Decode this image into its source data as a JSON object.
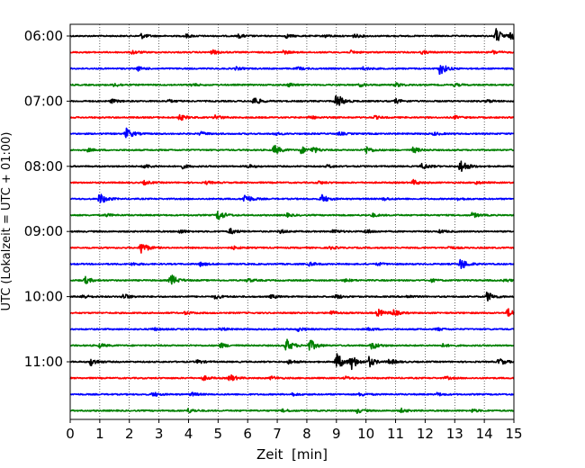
{
  "chart_data": {
    "type": "line",
    "title": "",
    "xlabel": "Zeit  [min]",
    "ylabel": "UTC (Lokalzeit = UTC + 01:00)",
    "xlim": [
      0,
      15
    ],
    "x_ticks": [
      "0",
      "1",
      "2",
      "3",
      "4",
      "5",
      "6",
      "7",
      "8",
      "9",
      "10",
      "11",
      "12",
      "13",
      "14",
      "15"
    ],
    "y_ticks": [
      "06:00",
      "07:00",
      "08:00",
      "09:00",
      "10:00",
      "11:00"
    ],
    "trace_interval_min": 15,
    "grid": "vertical dotted at each minute",
    "legend": "none",
    "colors": [
      "#000000",
      "#ff0000",
      "#0000ff",
      "#008000"
    ],
    "series": [
      {
        "start": "06:00",
        "color": "#000000",
        "events": [
          [
            2.4,
            0.35
          ],
          [
            3.9,
            0.25
          ],
          [
            5.7,
            0.25
          ],
          [
            7.3,
            0.25
          ],
          [
            8.6,
            0.2
          ],
          [
            9.6,
            0.25
          ],
          [
            14.4,
            1.0
          ],
          [
            14.9,
            0.4
          ]
        ]
      },
      {
        "start": "06:15",
        "color": "#ff0000",
        "events": [
          [
            2.1,
            0.25
          ],
          [
            4.8,
            0.3
          ],
          [
            7.2,
            0.25
          ],
          [
            9.5,
            0.2
          ],
          [
            11.9,
            0.2
          ],
          [
            14.3,
            0.25
          ]
        ]
      },
      {
        "start": "06:30",
        "color": "#0000ff",
        "events": [
          [
            2.3,
            0.25
          ],
          [
            5.6,
            0.2
          ],
          [
            7.7,
            0.2
          ],
          [
            9.9,
            0.2
          ],
          [
            12.5,
            0.9
          ]
        ]
      },
      {
        "start": "06:45",
        "color": "#008000",
        "events": [
          [
            1.5,
            0.25
          ],
          [
            4.1,
            0.2
          ],
          [
            7.4,
            0.25
          ],
          [
            9.8,
            0.2
          ],
          [
            11.0,
            0.3
          ],
          [
            13.0,
            0.2
          ]
        ]
      },
      {
        "start": "07:00",
        "color": "#000000",
        "events": [
          [
            1.4,
            0.25
          ],
          [
            3.3,
            0.2
          ],
          [
            6.2,
            0.6
          ],
          [
            9.0,
            1.1
          ],
          [
            11.0,
            0.3
          ],
          [
            14.1,
            0.2
          ]
        ]
      },
      {
        "start": "07:15",
        "color": "#ff0000",
        "events": [
          [
            3.7,
            0.4
          ],
          [
            4.9,
            0.35
          ],
          [
            8.1,
            0.25
          ],
          [
            10.3,
            0.2
          ],
          [
            13.0,
            0.2
          ]
        ]
      },
      {
        "start": "07:30",
        "color": "#0000ff",
        "events": [
          [
            1.9,
            0.8
          ],
          [
            4.4,
            0.25
          ],
          [
            6.9,
            0.2
          ],
          [
            9.1,
            0.2
          ],
          [
            12.3,
            0.2
          ]
        ]
      },
      {
        "start": "07:45",
        "color": "#008000",
        "events": [
          [
            0.6,
            0.2
          ],
          [
            6.9,
            0.7
          ],
          [
            7.8,
            0.5
          ],
          [
            8.2,
            0.4
          ],
          [
            10.0,
            0.5
          ],
          [
            11.6,
            0.4
          ]
        ]
      },
      {
        "start": "08:00",
        "color": "#000000",
        "events": [
          [
            2.5,
            0.3
          ],
          [
            3.8,
            0.25
          ],
          [
            6.0,
            0.25
          ],
          [
            8.7,
            0.2
          ],
          [
            11.9,
            0.45
          ],
          [
            13.2,
            1.0
          ]
        ]
      },
      {
        "start": "08:15",
        "color": "#ff0000",
        "events": [
          [
            2.5,
            0.25
          ],
          [
            4.6,
            0.2
          ],
          [
            8.4,
            0.2
          ],
          [
            11.6,
            0.35
          ],
          [
            13.7,
            0.2
          ]
        ]
      },
      {
        "start": "08:30",
        "color": "#0000ff",
        "events": [
          [
            1.0,
            0.8
          ],
          [
            5.9,
            0.7
          ],
          [
            8.5,
            0.6
          ],
          [
            10.6,
            0.2
          ],
          [
            13.1,
            0.2
          ]
        ]
      },
      {
        "start": "08:45",
        "color": "#008000",
        "events": [
          [
            1.2,
            0.2
          ],
          [
            5.0,
            0.75
          ],
          [
            7.3,
            0.25
          ],
          [
            10.2,
            0.25
          ],
          [
            13.6,
            0.35
          ]
        ]
      },
      {
        "start": "09:00",
        "color": "#000000",
        "events": [
          [
            3.7,
            0.25
          ],
          [
            5.4,
            0.4
          ],
          [
            7.1,
            0.25
          ],
          [
            8.9,
            0.25
          ],
          [
            10.0,
            0.3
          ],
          [
            12.5,
            0.2
          ]
        ]
      },
      {
        "start": "09:15",
        "color": "#ff0000",
        "events": [
          [
            2.4,
            0.85
          ],
          [
            5.5,
            0.2
          ],
          [
            8.8,
            0.2
          ],
          [
            12.8,
            0.2
          ]
        ]
      },
      {
        "start": "09:30",
        "color": "#0000ff",
        "events": [
          [
            2.1,
            0.2
          ],
          [
            4.4,
            0.25
          ],
          [
            8.1,
            0.25
          ],
          [
            10.4,
            0.2
          ],
          [
            13.2,
            0.85
          ]
        ]
      },
      {
        "start": "09:45",
        "color": "#008000",
        "events": [
          [
            0.5,
            0.5
          ],
          [
            3.4,
            0.85
          ],
          [
            6.0,
            0.25
          ],
          [
            9.3,
            0.2
          ],
          [
            12.2,
            0.2
          ],
          [
            14.7,
            0.2
          ]
        ]
      },
      {
        "start": "10:00",
        "color": "#000000",
        "events": [
          [
            0.4,
            0.3
          ],
          [
            1.8,
            0.4
          ],
          [
            4.9,
            0.3
          ],
          [
            6.8,
            0.25
          ],
          [
            9.0,
            0.3
          ],
          [
            11.4,
            0.2
          ],
          [
            14.1,
            0.7
          ]
        ]
      },
      {
        "start": "10:15",
        "color": "#ff0000",
        "events": [
          [
            3.9,
            0.2
          ],
          [
            8.8,
            0.3
          ],
          [
            10.4,
            0.55
          ],
          [
            10.9,
            0.45
          ],
          [
            14.8,
            0.6
          ]
        ]
      },
      {
        "start": "10:30",
        "color": "#0000ff",
        "events": [
          [
            2.8,
            0.2
          ],
          [
            5.1,
            0.2
          ],
          [
            7.7,
            0.25
          ],
          [
            10.1,
            0.2
          ],
          [
            12.4,
            0.2
          ]
        ]
      },
      {
        "start": "10:45",
        "color": "#008000",
        "events": [
          [
            1.0,
            0.25
          ],
          [
            5.1,
            0.3
          ],
          [
            7.3,
            0.95
          ],
          [
            8.1,
            0.85
          ],
          [
            10.2,
            0.55
          ],
          [
            12.6,
            0.2
          ]
        ]
      },
      {
        "start": "11:00",
        "color": "#000000",
        "events": [
          [
            0.7,
            0.55
          ],
          [
            4.3,
            0.25
          ],
          [
            7.4,
            0.3
          ],
          [
            9.0,
            1.3
          ],
          [
            9.5,
            1.0
          ],
          [
            10.1,
            0.7
          ],
          [
            10.8,
            0.4
          ],
          [
            14.5,
            0.5
          ]
        ]
      },
      {
        "start": "11:15",
        "color": "#ff0000",
        "events": [
          [
            4.5,
            0.3
          ],
          [
            5.4,
            0.5
          ],
          [
            6.8,
            0.25
          ],
          [
            9.3,
            0.2
          ],
          [
            12.7,
            0.2
          ]
        ]
      },
      {
        "start": "11:30",
        "color": "#0000ff",
        "events": [
          [
            2.8,
            0.3
          ],
          [
            4.1,
            0.25
          ],
          [
            7.5,
            0.2
          ],
          [
            9.8,
            0.25
          ],
          [
            12.4,
            0.2
          ]
        ]
      },
      {
        "start": "11:45",
        "color": "#008000",
        "events": [
          [
            4.0,
            0.3
          ],
          [
            7.2,
            0.2
          ],
          [
            9.7,
            0.3
          ],
          [
            11.2,
            0.25
          ],
          [
            13.6,
            0.2
          ]
        ]
      }
    ]
  }
}
